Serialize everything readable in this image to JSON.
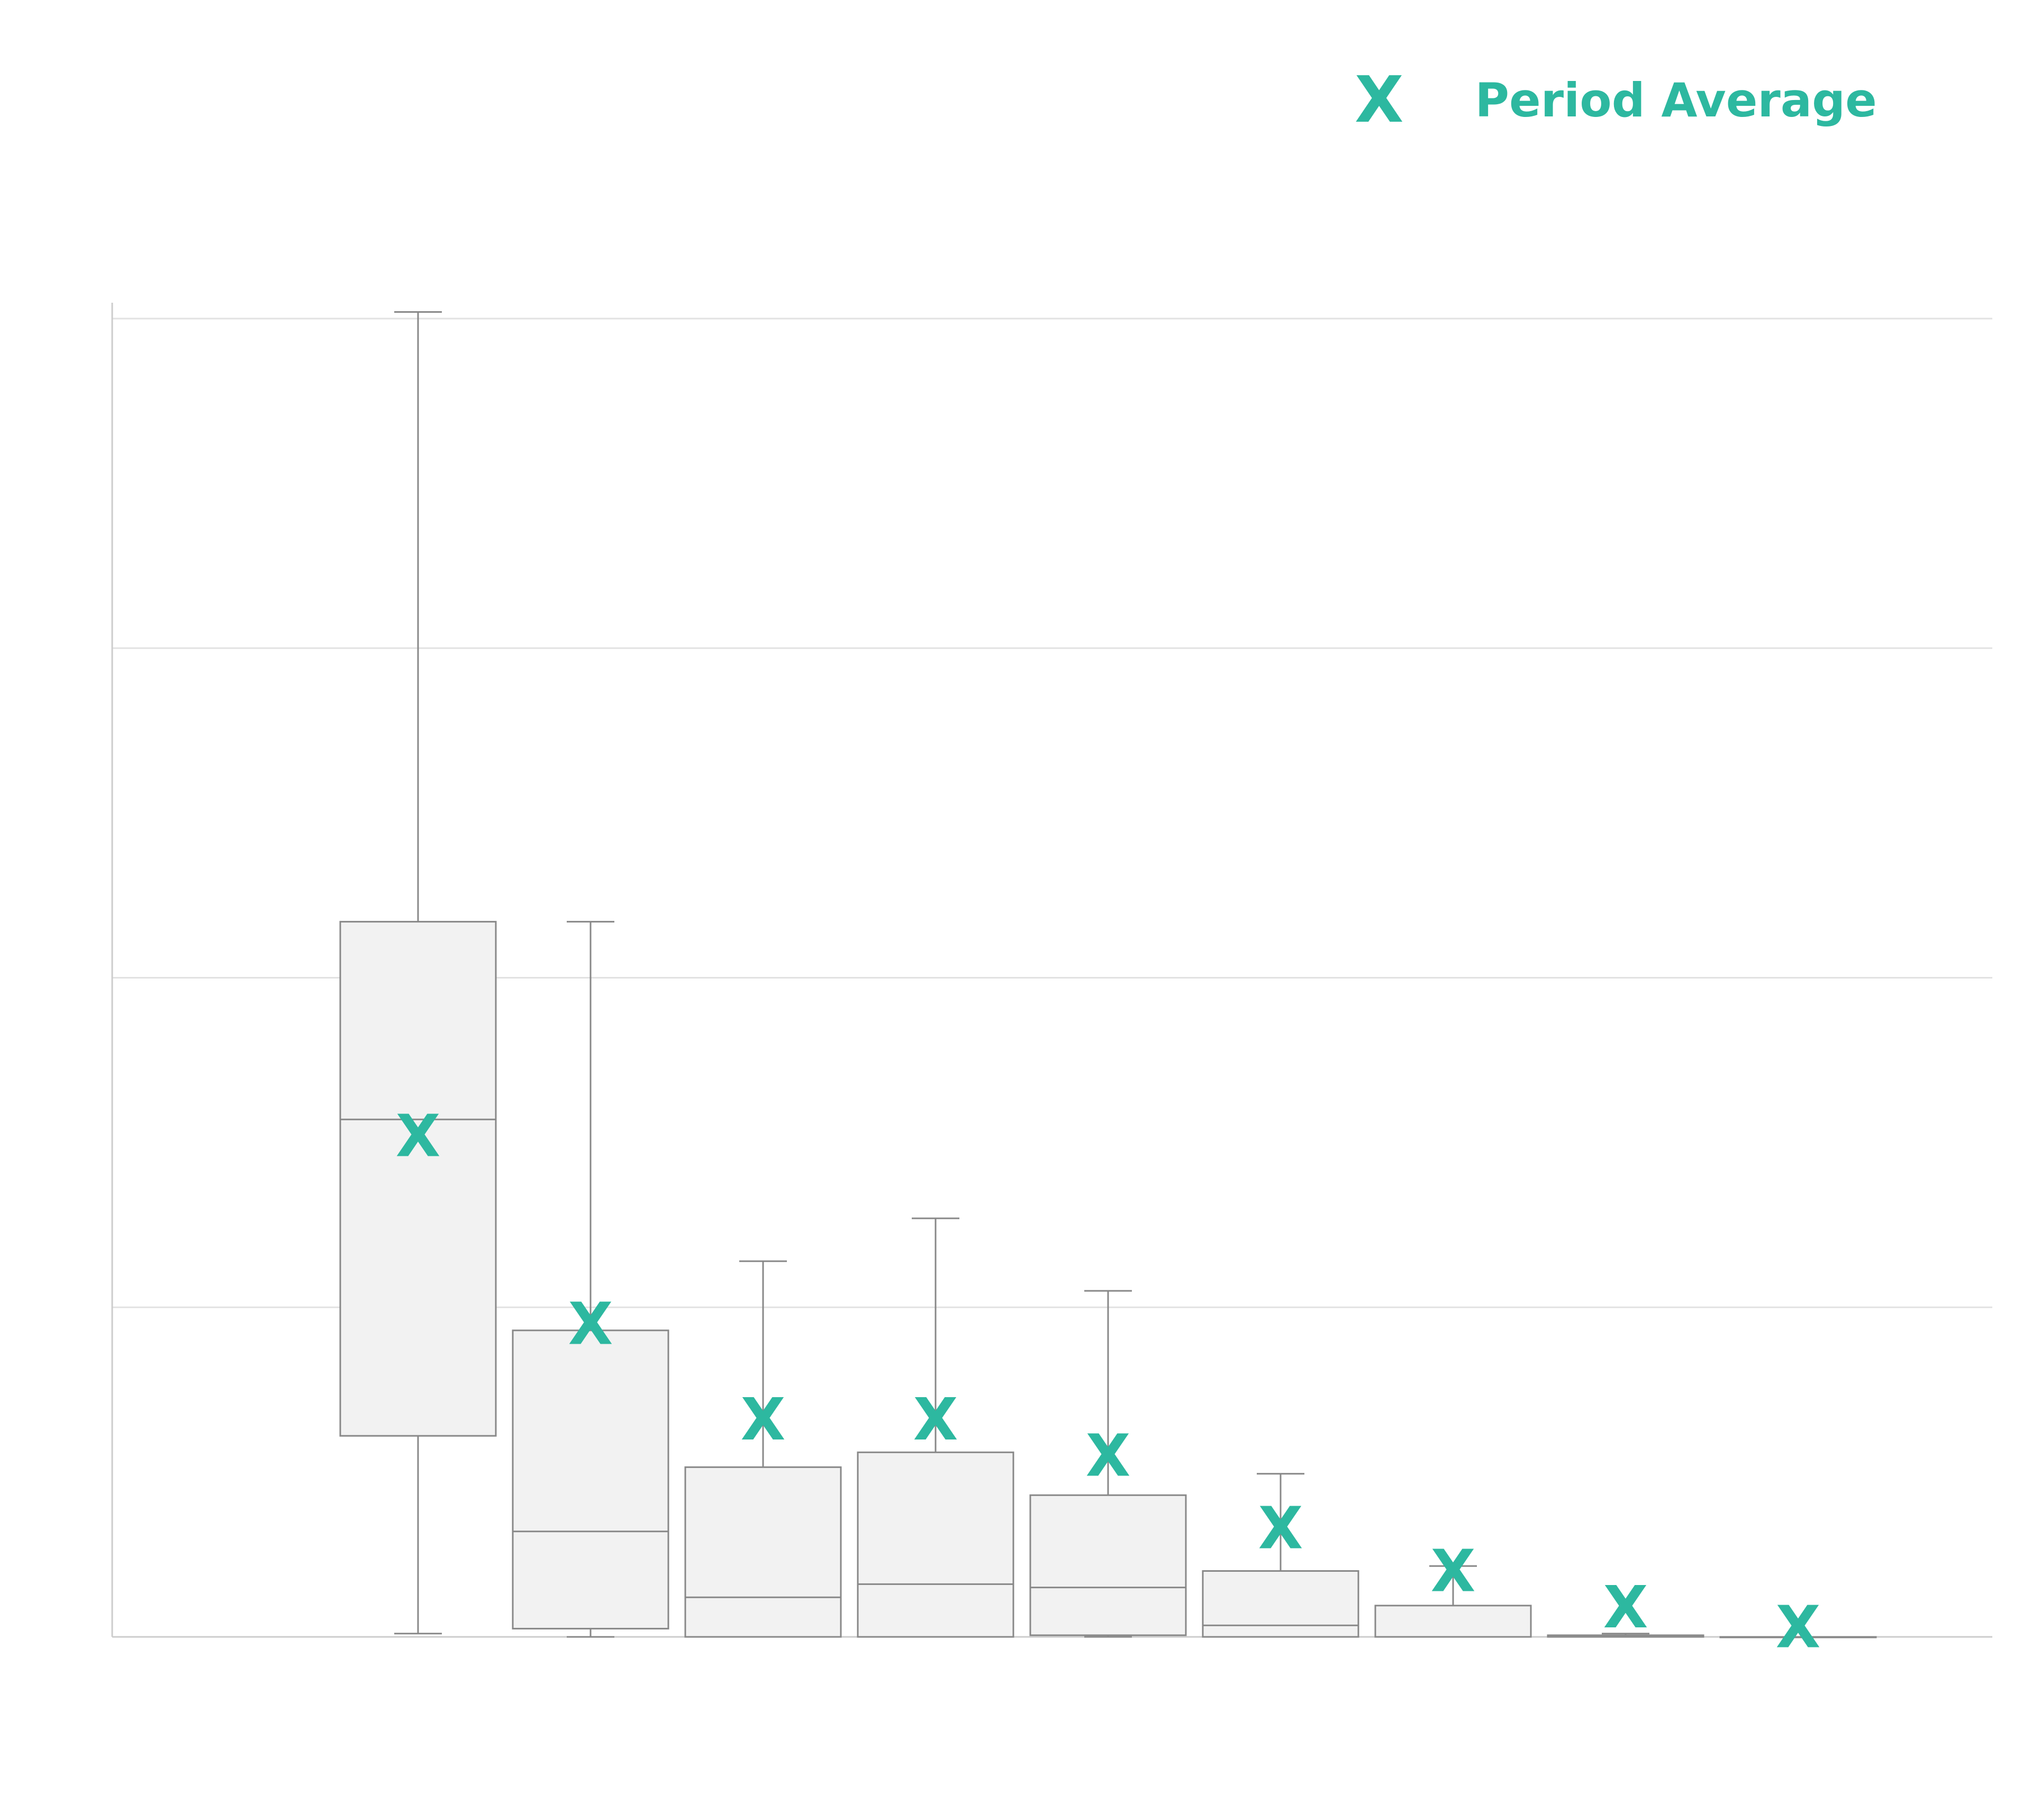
{
  "legend": {
    "marker": "X",
    "label": "Period Average"
  },
  "colors": {
    "accent": "#2db8a0",
    "box_fill": "#f2f2f2",
    "box_stroke": "#888888",
    "grid": "#e2e2e2",
    "axis": "#cccccc"
  },
  "chart_data": {
    "type": "box",
    "title": "",
    "xlabel": "",
    "ylabel": "",
    "ylim": [
      0,
      4
    ],
    "yticks": [
      0,
      1,
      2,
      3,
      4
    ],
    "grid": true,
    "legend_position": "top-right",
    "mean_marker": "X",
    "series": [
      {
        "name": "Period Average",
        "boxes": [
          {
            "whisker_low": 0.01,
            "q1": 0.61,
            "median": 1.57,
            "q3": 2.17,
            "whisker_high": 4.02,
            "mean": 1.52
          },
          {
            "whisker_low": 0.0,
            "q1": 0.025,
            "median": 0.32,
            "q3": 0.93,
            "whisker_high": 2.17,
            "mean": 0.95
          },
          {
            "whisker_low": 0.0,
            "q1": 0.0,
            "median": 0.12,
            "q3": 0.515,
            "whisker_high": 1.14,
            "mean": 0.66
          },
          {
            "whisker_low": 0.0,
            "q1": 0.0,
            "median": 0.16,
            "q3": 0.56,
            "whisker_high": 1.27,
            "mean": 0.66
          },
          {
            "whisker_low": 0.0,
            "q1": 0.005,
            "median": 0.15,
            "q3": 0.43,
            "whisker_high": 1.05,
            "mean": 0.55
          },
          {
            "whisker_low": 0.0,
            "q1": 0.0,
            "median": 0.035,
            "q3": 0.2,
            "whisker_high": 0.495,
            "mean": 0.33
          },
          {
            "whisker_low": 0.0,
            "q1": 0.0,
            "median": 0.0,
            "q3": 0.095,
            "whisker_high": 0.215,
            "mean": 0.2
          },
          {
            "whisker_low": 0.0,
            "q1": 0.0,
            "median": 0.0,
            "q3": 0.005,
            "whisker_high": 0.01,
            "mean": 0.09
          },
          {
            "whisker_low": 0.0,
            "q1": 0.0,
            "median": 0.0,
            "q3": 0.0,
            "whisker_high": 0.0,
            "mean": 0.03
          }
        ]
      }
    ]
  }
}
